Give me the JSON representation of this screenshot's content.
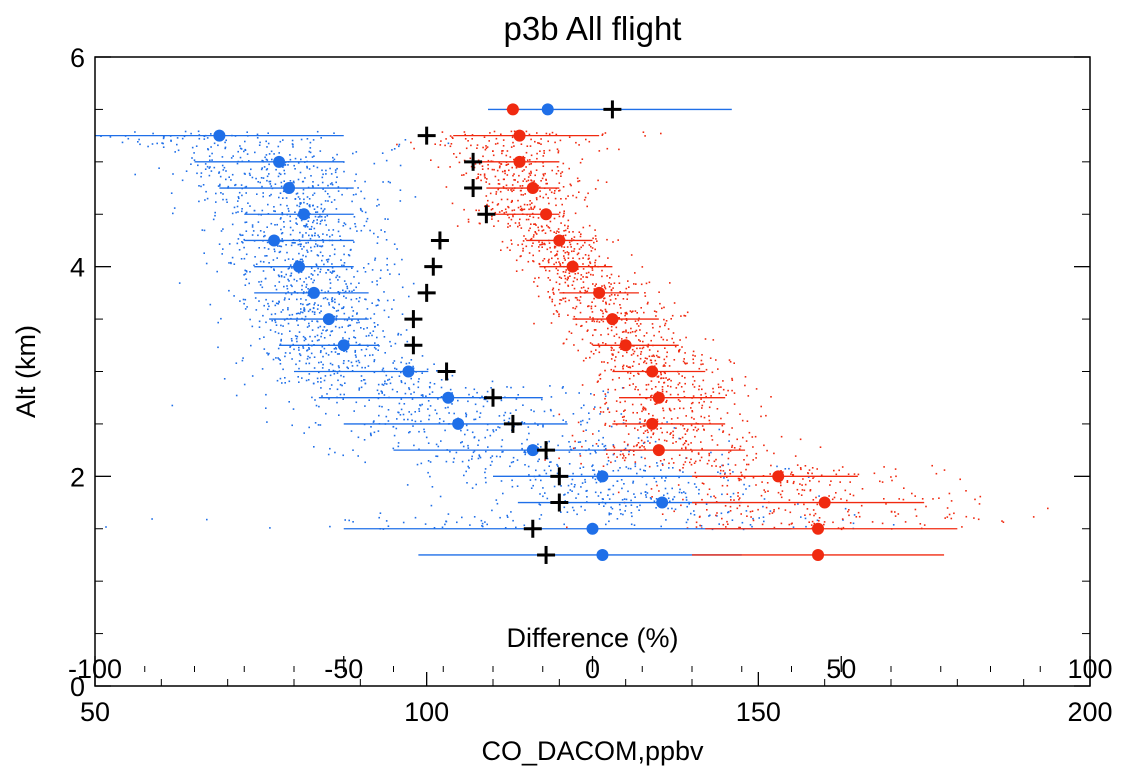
{
  "chart_data": {
    "type": "scatter",
    "title": "p3b All flight",
    "xlabel": "CO_DACOM,ppbv",
    "ylabel": "Alt (km)",
    "top_axis_label": "Difference (%)",
    "xlim": [
      50,
      200
    ],
    "ylim": [
      0,
      6
    ],
    "top_xlim": [
      -100,
      100
    ],
    "x_ticks": [
      "50",
      "100",
      "150",
      "200"
    ],
    "y_ticks": [
      "0",
      "2",
      "4",
      "6"
    ],
    "top_x_ticks": [
      "-100",
      "-50",
      "0",
      "50",
      "100"
    ],
    "grid": false,
    "colors": {
      "blue": "#1f6fe8",
      "red": "#f02a10",
      "black": "#000000"
    },
    "altitudes": [
      5.5,
      5.25,
      5.0,
      4.75,
      4.5,
      4.25,
      4.0,
      3.75,
      3.5,
      3.25,
      3.0,
      2.75,
      2.5,
      2.25,
      2.0,
      1.75,
      1.5,
      1.25
    ],
    "series": [
      {
        "color": "blue",
        "marker": "circle",
        "axis": "top",
        "x": [
          -9,
          -75,
          -63,
          -61,
          -58,
          -64,
          -59,
          -56,
          -53,
          -50,
          -37,
          -29,
          -27,
          -12,
          2,
          14,
          0,
          2
        ],
        "err": [
          [
            -21,
            28
          ],
          [
            -100,
            -50
          ],
          [
            -80,
            -50
          ],
          [
            -75,
            -48
          ],
          [
            -70,
            -48
          ],
          [
            -70,
            -48
          ],
          [
            -68,
            -48
          ],
          [
            -68,
            -45
          ],
          [
            -65,
            -45
          ],
          [
            -63,
            -43
          ],
          [
            -60,
            -33
          ],
          [
            -55,
            -10
          ],
          [
            -50,
            -5
          ],
          [
            -40,
            10
          ],
          [
            -20,
            25
          ],
          [
            -15,
            30
          ],
          [
            -50,
            40
          ],
          [
            -35,
            30
          ]
        ]
      },
      {
        "color": "red",
        "marker": "circle",
        "axis": "bottom",
        "x": [
          113,
          114,
          114,
          116,
          118,
          120,
          122,
          126,
          128,
          130,
          134,
          135,
          134,
          135,
          153,
          160,
          159,
          159
        ],
        "err": [
          [
            112,
            114
          ],
          [
            104,
            126
          ],
          [
            107,
            120
          ],
          [
            109,
            120
          ],
          [
            108,
            120
          ],
          [
            115,
            125
          ],
          [
            117,
            128
          ],
          [
            120,
            132
          ],
          [
            122,
            135
          ],
          [
            125,
            138
          ],
          [
            128,
            142
          ],
          [
            129,
            145
          ],
          [
            128,
            145
          ],
          [
            127,
            148
          ],
          [
            140,
            165
          ],
          [
            140,
            175
          ],
          [
            142,
            180
          ],
          [
            140,
            178
          ]
        ]
      },
      {
        "color": "black",
        "marker": "plus",
        "axis": "bottom",
        "x": [
          128,
          100,
          107,
          107,
          109,
          102,
          101,
          100,
          98,
          98,
          103,
          110,
          113,
          118,
          120,
          120,
          116,
          118
        ]
      }
    ],
    "clouds": [
      {
        "color": "blue",
        "axis": "top",
        "note": "dense blue point cloud"
      },
      {
        "color": "red",
        "axis": "bottom",
        "note": "dense red point cloud"
      }
    ]
  }
}
